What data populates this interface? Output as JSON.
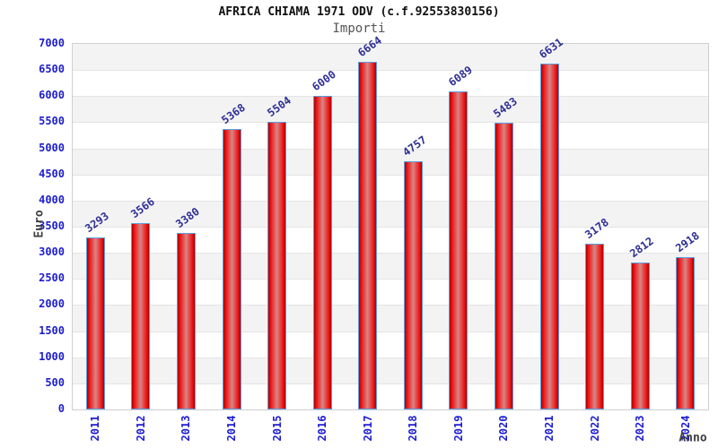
{
  "header": {
    "title": "AFRICA CHIAMA 1971 ODV (c.f.92553830156)",
    "subtitle": "Importi"
  },
  "chart_data": {
    "type": "bar",
    "title": "AFRICA CHIAMA 1971 ODV (c.f.92553830156)",
    "subtitle": "Importi",
    "xlabel": "Anno",
    "ylabel": "Euro",
    "categories": [
      "2011",
      "2012",
      "2013",
      "2014",
      "2015",
      "2016",
      "2017",
      "2018",
      "2019",
      "2020",
      "2021",
      "2022",
      "2023",
      "2024"
    ],
    "values": [
      3293,
      3566,
      3380,
      5368,
      5504,
      6000,
      6664,
      4757,
      6089,
      5483,
      6631,
      3178,
      2812,
      2918
    ],
    "ylim": [
      0,
      7000
    ],
    "ytick_step": 500,
    "grid": true,
    "legend": false,
    "value_labels_shown": true,
    "colors": {
      "bar_fill": "#ee1313",
      "bar_fill_edge_shade": "#a80000",
      "bar_fill_center_shade": "#d98585",
      "bar_border": "#5d9de0",
      "tick_label": "#1d1dd0",
      "value_label": "#2e2e96",
      "band_fill": "#f3f3f3",
      "gridline": "#e4e4e4",
      "plot_border": "#cfcfcf",
      "title_text": "#111111",
      "subtitle_text": "#555555",
      "axis_label_text": "#404040",
      "background": "#ffffff"
    }
  }
}
